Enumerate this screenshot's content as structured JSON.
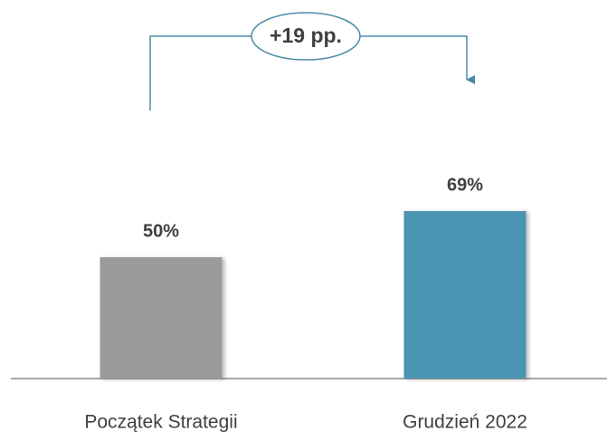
{
  "chart_data": {
    "type": "bar",
    "categories": [
      "Początek Strategii",
      "Grudzień 2022"
    ],
    "values": [
      50,
      69
    ],
    "value_labels": [
      "50%",
      "69%"
    ],
    "colors": [
      "#9a9a9a",
      "#4b94b2"
    ],
    "ylim": [
      0,
      100
    ],
    "annotation": "+19 pp."
  }
}
